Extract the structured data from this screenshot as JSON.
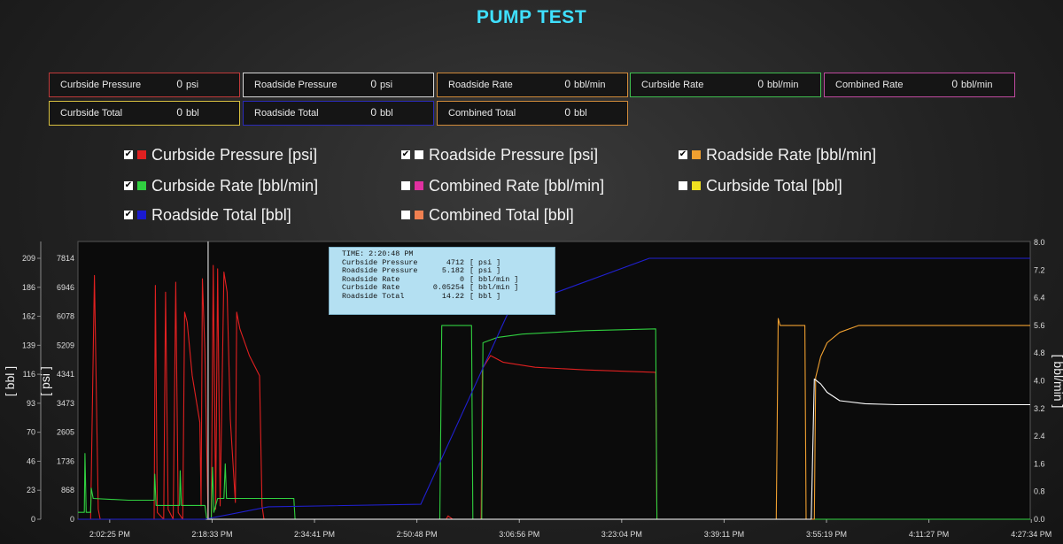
{
  "title": "PUMP TEST",
  "readouts": [
    {
      "label": "Curbside Pressure",
      "value": "0",
      "unit": "psi",
      "border": "#c03a3a"
    },
    {
      "label": "Roadside Pressure",
      "value": "0",
      "unit": "psi",
      "border": "#d8d8d8"
    },
    {
      "label": "Roadside Rate",
      "value": "0",
      "unit": "bbl/min",
      "border": "#d08a3a"
    },
    {
      "label": "Curbside Rate",
      "value": "0",
      "unit": "bbl/min",
      "border": "#3fbf4f"
    },
    {
      "label": "Combined Rate",
      "value": "0",
      "unit": "bbl/min",
      "border": "#c04aa0"
    },
    {
      "label": "Curbside Total",
      "value": "0",
      "unit": "bbl",
      "border": "#d8c040"
    },
    {
      "label": "Roadside Total",
      "value": "0",
      "unit": "bbl",
      "border": "#2a2ab8"
    },
    {
      "label": "Combined Total",
      "value": "0",
      "unit": "bbl",
      "border": "#d08a3a"
    }
  ],
  "legend": [
    {
      "label": "Curbside Pressure [psi]",
      "checked": true,
      "color": "#e02020"
    },
    {
      "label": "Roadside Pressure [psi]",
      "checked": true,
      "color": "#ffffff"
    },
    {
      "label": "Roadside Rate [bbl/min]",
      "checked": true,
      "color": "#f0a030"
    },
    {
      "label": "Curbside Rate [bbl/min]",
      "checked": true,
      "color": "#30d040"
    },
    {
      "label": "Combined Rate [bbl/min]",
      "checked": false,
      "color": "#e030a0"
    },
    {
      "label": "Curbside Total [bbl]",
      "checked": false,
      "color": "#f0e020"
    },
    {
      "label": "Roadside Total [bbl]",
      "checked": true,
      "color": "#1a1ad0"
    },
    {
      "label": "Combined Total [bbl]",
      "checked": false,
      "color": "#f08050"
    }
  ],
  "tooltip": {
    "time": "TIME: 2:20:48 PM",
    "rows": [
      {
        "name": "Curbside Pressure",
        "value": "4712",
        "unit": "[ psi ]"
      },
      {
        "name": "Roadside Pressure",
        "value": "5.182",
        "unit": "[ psi ]"
      },
      {
        "name": "Roadside Rate",
        "value": "0",
        "unit": "[ bbl/min ]"
      },
      {
        "name": "Curbside Rate",
        "value": "0.05254",
        "unit": "[ bbl/min ]"
      },
      {
        "name": "Roadside Total",
        "value": "14.22",
        "unit": "[ bbl ]"
      }
    ]
  },
  "chart_data": {
    "type": "line",
    "x_ticks": [
      "2:02:25 PM",
      "2:18:33 PM",
      "2:34:41 PM",
      "2:50:48 PM",
      "3:06:56 PM",
      "3:23:04 PM",
      "3:39:11 PM",
      "3:55:19 PM",
      "4:11:27 PM",
      "4:27:34 PM"
    ],
    "y_bbl_label": "[ bbl ]",
    "y_bbl_ticks": [
      "0",
      "23",
      "46",
      "70",
      "93",
      "116",
      "139",
      "162",
      "186",
      "209"
    ],
    "y_psi_label": "[ psi ]",
    "y_psi_ticks": [
      "0",
      "868",
      "1736",
      "2605",
      "3473",
      "4341",
      "5209",
      "6078",
      "6946",
      "7814"
    ],
    "y_rate_label": "[ bbl/min ]",
    "y_rate_ticks": [
      "0.0",
      "0.8",
      "1.6",
      "2.4",
      "3.2",
      "4.0",
      "4.8",
      "5.6",
      "6.4",
      "7.2",
      "8.0"
    ],
    "x_range_min": [
      0,
      150
    ],
    "cursor_x_min": 20.5,
    "series": [
      {
        "key": "curbside_pressure",
        "axis": "psi",
        "color": "#e02020",
        "width": 1.1,
        "points": [
          [
            0,
            0
          ],
          [
            2,
            0
          ],
          [
            2.6,
            7300
          ],
          [
            3.2,
            300
          ],
          [
            3.5,
            0
          ],
          [
            12,
            0
          ],
          [
            12.2,
            7000
          ],
          [
            12.5,
            200
          ],
          [
            13.5,
            0
          ],
          [
            13.8,
            6800
          ],
          [
            14.2,
            300
          ],
          [
            15,
            0
          ],
          [
            15.4,
            7100
          ],
          [
            15.8,
            200
          ],
          [
            16.5,
            0
          ],
          [
            16.8,
            6200
          ],
          [
            17.2,
            5900
          ],
          [
            18,
            4300
          ],
          [
            19.2,
            2900
          ],
          [
            19.4,
            400
          ],
          [
            19.6,
            7200
          ],
          [
            20,
            5000
          ],
          [
            20.5,
            0
          ],
          [
            21,
            0
          ],
          [
            21.3,
            7600
          ],
          [
            21.7,
            300
          ],
          [
            22,
            7500
          ],
          [
            22.4,
            400
          ],
          [
            23,
            7400
          ],
          [
            23.5,
            6800
          ],
          [
            24,
            3000
          ],
          [
            24.8,
            500
          ],
          [
            25,
            6200
          ],
          [
            25.5,
            5700
          ],
          [
            27,
            4900
          ],
          [
            28.6,
            4300
          ],
          [
            29,
            400
          ],
          [
            29.3,
            0
          ],
          [
            34,
            0
          ],
          [
            58,
            0
          ],
          [
            58.3,
            100
          ],
          [
            59,
            0
          ],
          [
            63.5,
            0
          ],
          [
            63.7,
            4500
          ],
          [
            64,
            4600
          ],
          [
            65,
            4900
          ],
          [
            67,
            4700
          ],
          [
            72,
            4550
          ],
          [
            80,
            4470
          ],
          [
            91,
            4400
          ],
          [
            91.2,
            0
          ],
          [
            108,
            0
          ],
          [
            112,
            0
          ],
          [
            150,
            0
          ]
        ]
      },
      {
        "key": "curbside_rate",
        "axis": "rate",
        "color": "#30d040",
        "width": 1.1,
        "points": [
          [
            0,
            0.2
          ],
          [
            1,
            0.2
          ],
          [
            1.1,
            1.9
          ],
          [
            1.3,
            0.2
          ],
          [
            2,
            0.2
          ],
          [
            2.1,
            0.9
          ],
          [
            2.4,
            0.6
          ],
          [
            8,
            0.55
          ],
          [
            12,
            0.55
          ],
          [
            12.1,
            1.3
          ],
          [
            12.3,
            0.4
          ],
          [
            16,
            0.4
          ],
          [
            16.1,
            1.4
          ],
          [
            16.3,
            0.4
          ],
          [
            20,
            0.4
          ],
          [
            20.3,
            0
          ],
          [
            21,
            0
          ],
          [
            21.2,
            1.5
          ],
          [
            21.4,
            0.2
          ],
          [
            22,
            0.6
          ],
          [
            23,
            0.6
          ],
          [
            23.2,
            1.6
          ],
          [
            23.4,
            0.6
          ],
          [
            34,
            0.6
          ],
          [
            34.2,
            0
          ],
          [
            57,
            0
          ],
          [
            57.3,
            5.6
          ],
          [
            62,
            5.6
          ],
          [
            62.2,
            0
          ],
          [
            63.6,
            0
          ],
          [
            63.8,
            5.1
          ],
          [
            66,
            5.25
          ],
          [
            70,
            5.35
          ],
          [
            80,
            5.45
          ],
          [
            91,
            5.5
          ],
          [
            91.2,
            0
          ],
          [
            150,
            0
          ]
        ]
      },
      {
        "key": "roadside_rate",
        "axis": "rate",
        "color": "#f0a030",
        "width": 1.1,
        "points": [
          [
            0,
            0
          ],
          [
            110,
            0
          ],
          [
            110.3,
            5.8
          ],
          [
            110.6,
            5.6
          ],
          [
            114.5,
            5.6
          ],
          [
            114.7,
            0
          ],
          [
            116,
            0
          ],
          [
            116.2,
            4.1
          ],
          [
            117,
            4.7
          ],
          [
            118,
            5.1
          ],
          [
            120,
            5.4
          ],
          [
            123,
            5.6
          ],
          [
            127,
            5.6
          ],
          [
            128,
            5.6
          ],
          [
            150,
            5.6
          ]
        ]
      },
      {
        "key": "roadside_pressure",
        "axis": "psi",
        "color": "#ffffff",
        "width": 1.1,
        "points": [
          [
            0,
            0
          ],
          [
            115.5,
            0
          ],
          [
            116,
            4200
          ],
          [
            117,
            4050
          ],
          [
            118,
            3800
          ],
          [
            120,
            3550
          ],
          [
            124,
            3460
          ],
          [
            129,
            3430
          ],
          [
            150,
            3430
          ]
        ]
      },
      {
        "key": "roadside_total",
        "axis": "bbl",
        "color": "#2020d0",
        "width": 1.1,
        "points": [
          [
            0,
            0
          ],
          [
            20,
            0
          ],
          [
            30,
            10
          ],
          [
            54,
            12
          ],
          [
            68,
            168
          ],
          [
            90,
            209
          ],
          [
            150,
            209
          ]
        ]
      }
    ]
  }
}
